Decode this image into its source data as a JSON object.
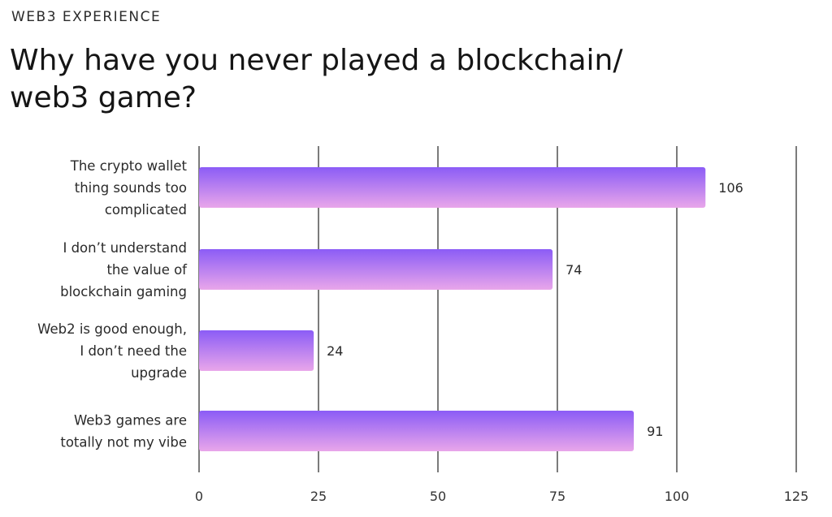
{
  "header": {
    "eyebrow": "WEB3 EXPERIENCE",
    "title": "Why have you never played a blockchain/ web3 game?"
  },
  "colors": {
    "bar_top": "#8b5cf6",
    "bar_bottom": "#e9a6ea",
    "gridline": "#5a5a5a"
  },
  "chart_data": {
    "type": "bar",
    "orientation": "horizontal",
    "title": "Why have you never played a blockchain/ web3 game?",
    "categories": [
      [
        "The crypto wallet",
        "thing sounds too",
        "complicated"
      ],
      [
        "I don’t understand",
        "the value of",
        "blockchain gaming"
      ],
      [
        "Web2 is good enough,",
        "I don’t need the",
        "upgrade"
      ],
      [
        "Web3 games are",
        "totally not my vibe"
      ]
    ],
    "values": [
      106,
      74,
      24,
      91
    ],
    "data_labels": [
      "106",
      "74",
      "24",
      "91"
    ],
    "xlim": [
      0,
      125
    ],
    "xticks": [
      0,
      25,
      50,
      75,
      100,
      125
    ],
    "grid": true,
    "legend": "none"
  }
}
